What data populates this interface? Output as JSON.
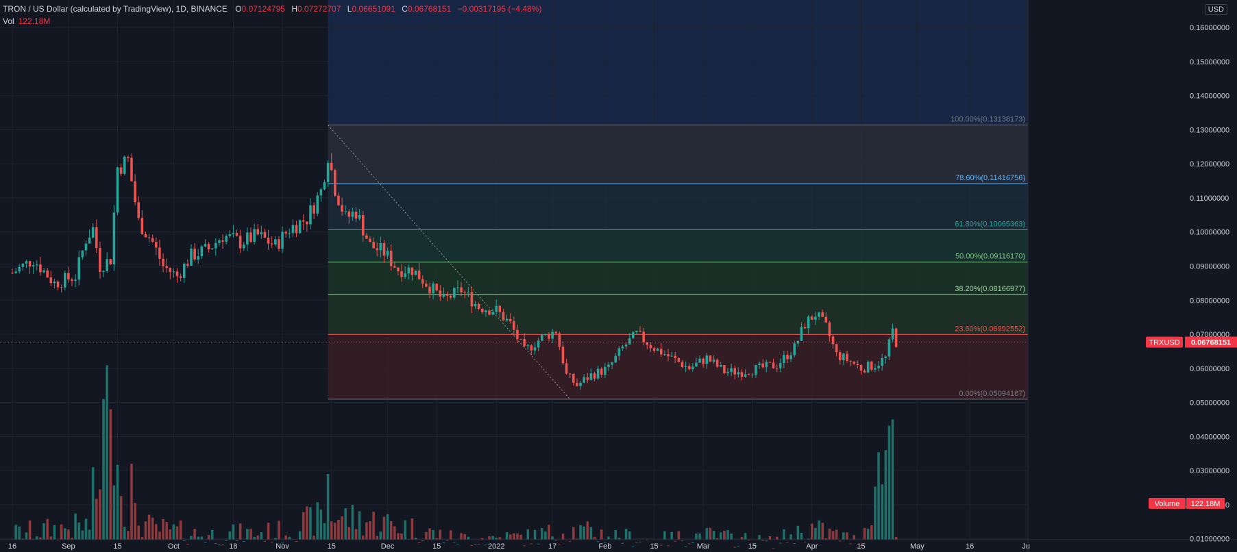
{
  "legend": {
    "symbol": "TRON / US Dollar (calculated by TradingView), 1D, BINANCE",
    "open_label": "O",
    "open": "0.07124795",
    "high_label": "H",
    "high": "0.07272707",
    "low_label": "L",
    "low": "0.06651091",
    "close_label": "C",
    "close": "0.06768151",
    "change": "−0.00317195 (−4.48%)",
    "vol_label": "Vol",
    "vol_value": "122.18M"
  },
  "currency": "USD",
  "price_tag": {
    "symbol": "TRXUSD",
    "value": "0.06768151",
    "price": 0.06768151
  },
  "volume_tag": {
    "label": "Volume",
    "value": "122.18M"
  },
  "colors": {
    "background": "#131722",
    "up": "#26a69a",
    "down": "#ef5350",
    "up_volume": "#1e6f69",
    "down_volume": "#8c3a3d",
    "grid": "#1f2330",
    "axis_text": "#d1d4dc",
    "price_tag": "#f23645"
  },
  "chart_data": {
    "type": "candlestick",
    "y_axis": {
      "min": 0.005,
      "max": 0.167,
      "side": "right",
      "ticks": [
        "0.16000000",
        "0.15000000",
        "0.14000000",
        "0.13000000",
        "0.12000000",
        "0.11000000",
        "0.10000000",
        "0.09000000",
        "0.08000000",
        "0.07000000",
        "0.06000000",
        "0.05000000",
        "0.04000000",
        "0.03000000",
        "0.02000000",
        "0.01000000"
      ]
    },
    "x_axis": {
      "start": "2021-08-16",
      "end": "2022-06-01",
      "labels": [
        {
          "date": "2021-08-16",
          "label": "16"
        },
        {
          "date": "2021-09-01",
          "label": "Sep"
        },
        {
          "date": "2021-09-15",
          "label": "15"
        },
        {
          "date": "2021-10-01",
          "label": "Oct"
        },
        {
          "date": "2021-10-18",
          "label": "18"
        },
        {
          "date": "2021-11-01",
          "label": "Nov"
        },
        {
          "date": "2021-11-15",
          "label": "15"
        },
        {
          "date": "2021-12-01",
          "label": "Dec"
        },
        {
          "date": "2021-12-15",
          "label": "15"
        },
        {
          "date": "2022-01-01",
          "label": "2022"
        },
        {
          "date": "2022-01-17",
          "label": "17"
        },
        {
          "date": "2022-02-01",
          "label": "Feb"
        },
        {
          "date": "2022-02-15",
          "label": "15"
        },
        {
          "date": "2022-03-01",
          "label": "Mar"
        },
        {
          "date": "2022-03-15",
          "label": "15"
        },
        {
          "date": "2022-04-01",
          "label": "Apr"
        },
        {
          "date": "2022-04-15",
          "label": "15"
        },
        {
          "date": "2022-05-01",
          "label": "May"
        },
        {
          "date": "2022-05-16",
          "label": "16"
        },
        {
          "date": "2022-06-01",
          "label": "Ju"
        }
      ]
    },
    "price_path": [
      {
        "date": "2021-08-16",
        "price": 0.088
      },
      {
        "date": "2021-08-22",
        "price": 0.092
      },
      {
        "date": "2021-08-28",
        "price": 0.085
      },
      {
        "date": "2021-09-03",
        "price": 0.087
      },
      {
        "date": "2021-09-06",
        "price": 0.098
      },
      {
        "date": "2021-09-08",
        "price": 0.101
      },
      {
        "date": "2021-09-10",
        "price": 0.09
      },
      {
        "date": "2021-09-13",
        "price": 0.092
      },
      {
        "date": "2021-09-15",
        "price": 0.119
      },
      {
        "date": "2021-09-18",
        "price": 0.121
      },
      {
        "date": "2021-09-21",
        "price": 0.103
      },
      {
        "date": "2021-09-25",
        "price": 0.097
      },
      {
        "date": "2021-09-28",
        "price": 0.09
      },
      {
        "date": "2021-10-02",
        "price": 0.087
      },
      {
        "date": "2021-10-06",
        "price": 0.093
      },
      {
        "date": "2021-10-11",
        "price": 0.095
      },
      {
        "date": "2021-10-15",
        "price": 0.099
      },
      {
        "date": "2021-10-20",
        "price": 0.097
      },
      {
        "date": "2021-10-25",
        "price": 0.099
      },
      {
        "date": "2021-10-30",
        "price": 0.096
      },
      {
        "date": "2021-11-03",
        "price": 0.101
      },
      {
        "date": "2021-11-08",
        "price": 0.104
      },
      {
        "date": "2021-11-12",
        "price": 0.112
      },
      {
        "date": "2021-11-14",
        "price": 0.123
      },
      {
        "date": "2021-11-16",
        "price": 0.113
      },
      {
        "date": "2021-11-19",
        "price": 0.104
      },
      {
        "date": "2021-11-22",
        "price": 0.106
      },
      {
        "date": "2021-11-26",
        "price": 0.096
      },
      {
        "date": "2021-11-30",
        "price": 0.094
      },
      {
        "date": "2021-12-04",
        "price": 0.089
      },
      {
        "date": "2021-12-08",
        "price": 0.089
      },
      {
        "date": "2021-12-13",
        "price": 0.084
      },
      {
        "date": "2021-12-17",
        "price": 0.08
      },
      {
        "date": "2021-12-22",
        "price": 0.083
      },
      {
        "date": "2021-12-27",
        "price": 0.078
      },
      {
        "date": "2022-01-01",
        "price": 0.077
      },
      {
        "date": "2022-01-05",
        "price": 0.073
      },
      {
        "date": "2022-01-09",
        "price": 0.065
      },
      {
        "date": "2022-01-14",
        "price": 0.069
      },
      {
        "date": "2022-01-18",
        "price": 0.071
      },
      {
        "date": "2022-01-21",
        "price": 0.058
      },
      {
        "date": "2022-01-24",
        "price": 0.055
      },
      {
        "date": "2022-01-28",
        "price": 0.058
      },
      {
        "date": "2022-02-02",
        "price": 0.06
      },
      {
        "date": "2022-02-06",
        "price": 0.066
      },
      {
        "date": "2022-02-10",
        "price": 0.07
      },
      {
        "date": "2022-02-15",
        "price": 0.066
      },
      {
        "date": "2022-02-20",
        "price": 0.063
      },
      {
        "date": "2022-02-25",
        "price": 0.06
      },
      {
        "date": "2022-03-02",
        "price": 0.063
      },
      {
        "date": "2022-03-07",
        "price": 0.059
      },
      {
        "date": "2022-03-12",
        "price": 0.059
      },
      {
        "date": "2022-03-17",
        "price": 0.06
      },
      {
        "date": "2022-03-22",
        "price": 0.061
      },
      {
        "date": "2022-03-27",
        "price": 0.066
      },
      {
        "date": "2022-03-30",
        "price": 0.073
      },
      {
        "date": "2022-04-02",
        "price": 0.076
      },
      {
        "date": "2022-04-05",
        "price": 0.072
      },
      {
        "date": "2022-04-08",
        "price": 0.064
      },
      {
        "date": "2022-04-12",
        "price": 0.062
      },
      {
        "date": "2022-04-15",
        "price": 0.06
      },
      {
        "date": "2022-04-19",
        "price": 0.061
      },
      {
        "date": "2022-04-22",
        "price": 0.063
      },
      {
        "date": "2022-04-24",
        "price": 0.071
      },
      {
        "date": "2022-04-25",
        "price": 0.0677
      }
    ],
    "volume_path": [
      {
        "date": "2021-08-16",
        "value": 0.0065
      },
      {
        "date": "2021-09-08",
        "value": 0.009
      },
      {
        "date": "2021-09-12",
        "value": 0.042
      },
      {
        "date": "2021-09-18",
        "value": 0.012
      },
      {
        "date": "2021-09-25",
        "value": 0.008
      },
      {
        "date": "2021-10-10",
        "value": 0.006
      },
      {
        "date": "2021-11-01",
        "value": 0.007
      },
      {
        "date": "2021-11-14",
        "value": 0.012
      },
      {
        "date": "2021-12-04",
        "value": 0.009
      },
      {
        "date": "2021-12-20",
        "value": 0.005
      },
      {
        "date": "2022-01-10",
        "value": 0.0055
      },
      {
        "date": "2022-01-22",
        "value": 0.0075
      },
      {
        "date": "2022-02-15",
        "value": 0.0045
      },
      {
        "date": "2022-03-01",
        "value": 0.006
      },
      {
        "date": "2022-03-20",
        "value": 0.004
      },
      {
        "date": "2022-04-01",
        "value": 0.008
      },
      {
        "date": "2022-04-15",
        "value": 0.004
      },
      {
        "date": "2022-04-24",
        "value": 0.04
      },
      {
        "date": "2022-04-25",
        "value": 0.01
      }
    ],
    "volume_spikes": [
      {
        "date": "2021-09-11",
        "value": 0.046
      },
      {
        "date": "2021-09-13",
        "value": 0.043
      },
      {
        "date": "2021-09-08",
        "value": 0.026
      },
      {
        "date": "2021-09-19",
        "value": 0.027
      },
      {
        "date": "2021-11-14",
        "value": 0.024
      },
      {
        "date": "2022-04-24",
        "value": 0.04
      }
    ],
    "fib_retracement": {
      "start_date": "2021-11-14",
      "end_date": "2022-01-22",
      "levels": [
        {
          "label": "100.00%(0.13138173)",
          "price": 0.13138173,
          "color": "#787b86"
        },
        {
          "label": "78.60%(0.11416756)",
          "price": 0.11416756,
          "color": "#64b5f6"
        },
        {
          "label": "61.80%(0.10065363)",
          "price": 0.10065363,
          "color": "#26a69a"
        },
        {
          "label": "50.00%(0.09116170)",
          "price": 0.0911617,
          "color": "#81c784"
        },
        {
          "label": "38.20%(0.08166977)",
          "price": 0.08166977,
          "color": "#a5d6a7"
        },
        {
          "label": "23.60%(0.06992552)",
          "price": 0.06992552,
          "color": "#ef5350"
        },
        {
          "label": "0.00%(0.05094167)",
          "price": 0.05094167,
          "color": "#787b86"
        }
      ]
    }
  }
}
